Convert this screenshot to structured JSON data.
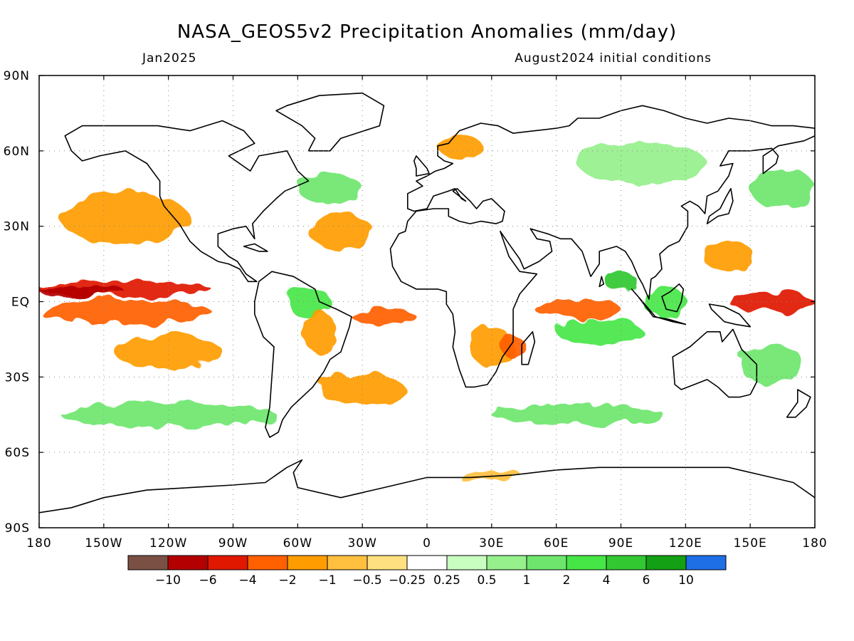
{
  "title": "NASA_GEOS5v2 Precipitation Anomalies (mm/day)",
  "subtitle_left": "Jan2025",
  "subtitle_right": "August2024 initial conditions",
  "map": {
    "projection": "equirectangular",
    "lon_range": [
      -180,
      180
    ],
    "lat_range": [
      -90,
      90
    ],
    "grid": "dotted",
    "lon_ticks": [
      {
        "lon": -180,
        "label": "180"
      },
      {
        "lon": -150,
        "label": "150W"
      },
      {
        "lon": -120,
        "label": "120W"
      },
      {
        "lon": -90,
        "label": "90W"
      },
      {
        "lon": -60,
        "label": "60W"
      },
      {
        "lon": -30,
        "label": "30W"
      },
      {
        "lon": 0,
        "label": "0"
      },
      {
        "lon": 30,
        "label": "30E"
      },
      {
        "lon": 60,
        "label": "60E"
      },
      {
        "lon": 90,
        "label": "90E"
      },
      {
        "lon": 120,
        "label": "120E"
      },
      {
        "lon": 150,
        "label": "150E"
      },
      {
        "lon": 180,
        "label": "180"
      }
    ],
    "lat_ticks": [
      {
        "lat": 90,
        "label": "90N"
      },
      {
        "lat": 60,
        "label": "60N"
      },
      {
        "lat": 30,
        "label": "30N"
      },
      {
        "lat": 0,
        "label": "EQ"
      },
      {
        "lat": -30,
        "label": "30S"
      },
      {
        "lat": -60,
        "label": "60S"
      },
      {
        "lat": -90,
        "label": "90S"
      }
    ]
  },
  "colorbar": {
    "colors": [
      "#7a5045",
      "#b40000",
      "#e01800",
      "#ff6000",
      "#ff9c00",
      "#ffc040",
      "#ffe080",
      "#ffffff",
      "#c8ffc0",
      "#96f08c",
      "#6ee66e",
      "#46e646",
      "#32c832",
      "#14a014",
      "#1e6ee6"
    ],
    "labels": [
      "−10",
      "−6",
      "−4",
      "−2",
      "−1",
      "−0.5",
      "−0.25",
      "0.25",
      "0.5",
      "1",
      "2",
      "4",
      "6",
      "10"
    ]
  },
  "anomaly_regions": [
    {
      "name": "north-pacific-dry",
      "level": -1,
      "lon": -140,
      "lat": 33,
      "rlon": 30,
      "rlat": 10
    },
    {
      "name": "equatorial-pacific-dry",
      "level": -4,
      "lon": -140,
      "lat": 5,
      "rlon": 40,
      "rlat": 3
    },
    {
      "name": "equatorial-pacific-dry-core",
      "level": -6,
      "lon": -160,
      "lat": 4,
      "rlon": 20,
      "rlat": 2
    },
    {
      "name": "equatorial-pacific-south-dry",
      "level": -2,
      "lon": -140,
      "lat": -4,
      "rlon": 40,
      "rlat": 5
    },
    {
      "name": "south-pacific-dry",
      "level": -1,
      "lon": -120,
      "lat": -20,
      "rlon": 25,
      "rlat": 7
    },
    {
      "name": "atlantic-itcz-dry",
      "level": -2,
      "lon": -20,
      "lat": -6,
      "rlon": 15,
      "rlat": 3
    },
    {
      "name": "north-atlantic-dry",
      "level": -1,
      "lon": -40,
      "lat": 28,
      "rlon": 15,
      "rlat": 7
    },
    {
      "name": "north-atlantic-wet",
      "level": 1,
      "lon": -45,
      "lat": 45,
      "rlon": 15,
      "rlat": 6
    },
    {
      "name": "amazon-wet",
      "level": 2,
      "lon": -55,
      "lat": 0,
      "rlon": 10,
      "rlat": 6
    },
    {
      "name": "brazil-dry",
      "level": -1,
      "lon": -50,
      "lat": -12,
      "rlon": 8,
      "rlat": 8
    },
    {
      "name": "south-atlantic-dry",
      "level": -1,
      "lon": -30,
      "lat": -35,
      "rlon": 20,
      "rlat": 6
    },
    {
      "name": "south-africa-dry",
      "level": -1,
      "lon": 30,
      "lat": -18,
      "rlon": 10,
      "rlat": 8
    },
    {
      "name": "mozambique-dry",
      "level": -2,
      "lon": 40,
      "lat": -18,
      "rlon": 6,
      "rlat": 4
    },
    {
      "name": "indian-ocean-dry",
      "level": -2,
      "lon": 70,
      "lat": -3,
      "rlon": 20,
      "rlat": 4
    },
    {
      "name": "indian-ocean-wet",
      "level": 2,
      "lon": 80,
      "lat": -12,
      "rlon": 20,
      "rlat": 5
    },
    {
      "name": "bay-of-bengal-wet",
      "level": 4,
      "lon": 90,
      "lat": 8,
      "rlon": 8,
      "rlat": 3
    },
    {
      "name": "maritime-continent-wet",
      "level": 2,
      "lon": 110,
      "lat": 0,
      "rlon": 10,
      "rlat": 6
    },
    {
      "name": "west-pacific-dry",
      "level": -4,
      "lon": 160,
      "lat": 0,
      "rlon": 20,
      "rlat": 4
    },
    {
      "name": "philippine-sea-dry",
      "level": -1,
      "lon": 140,
      "lat": 18,
      "rlon": 12,
      "rlat": 6
    },
    {
      "name": "australia-wet",
      "level": 1,
      "lon": 160,
      "lat": -25,
      "rlon": 15,
      "rlat": 8
    },
    {
      "name": "southern-ocean-wet",
      "level": 1,
      "lon": -120,
      "lat": -45,
      "rlon": 50,
      "rlat": 5
    },
    {
      "name": "southern-ocean-indian-wet",
      "level": 1,
      "lon": 70,
      "lat": -45,
      "rlon": 40,
      "rlat": 4
    },
    {
      "name": "europe-dry",
      "level": -1,
      "lon": 15,
      "lat": 62,
      "rlon": 10,
      "rlat": 5
    },
    {
      "name": "siberia-wet",
      "level": 0.5,
      "lon": 100,
      "lat": 55,
      "rlon": 30,
      "rlat": 8
    },
    {
      "name": "north-pacific-wet",
      "level": 1,
      "lon": 165,
      "lat": 45,
      "rlon": 15,
      "rlat": 8
    },
    {
      "name": "antarctic-coast-dry",
      "level": -0.5,
      "lon": 30,
      "lat": -70,
      "rlon": 15,
      "rlat": 2
    }
  ]
}
